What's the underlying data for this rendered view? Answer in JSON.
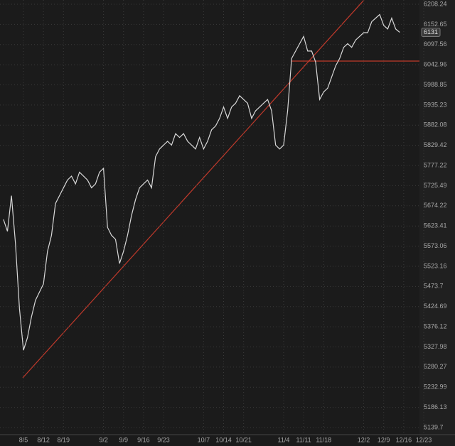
{
  "chart_data": {
    "type": "line",
    "log_scale": true,
    "grid": true,
    "categories": [
      null,
      null,
      null,
      null,
      null,
      "8/5",
      null,
      null,
      null,
      null,
      "8/12",
      null,
      null,
      null,
      null,
      "8/19",
      null,
      null,
      null,
      null,
      null,
      null,
      null,
      null,
      null,
      "9/2",
      null,
      null,
      null,
      null,
      "9/9",
      null,
      null,
      null,
      null,
      "9/16",
      null,
      null,
      null,
      null,
      "9/23",
      null,
      null,
      null,
      null,
      null,
      null,
      null,
      null,
      null,
      "10/7",
      null,
      null,
      null,
      null,
      "10/14",
      null,
      null,
      null,
      null,
      "10/21",
      null,
      null,
      null,
      null,
      null,
      null,
      null,
      null,
      null,
      "11/4",
      null,
      null,
      null,
      null,
      "11/11",
      null,
      null,
      null,
      null,
      "11/18",
      null,
      null,
      null,
      null,
      null,
      null,
      null,
      null,
      null,
      "12/2",
      null,
      null,
      null,
      null,
      "12/9",
      null,
      null,
      null,
      null,
      "12/16",
      null,
      null,
      null,
      null,
      "12/23"
    ],
    "series": [
      {
        "color": "#d8d8d8",
        "values": [
          5640,
          5610,
          5700,
          5580,
          5420,
          5320,
          5350,
          5400,
          5440,
          5460,
          5480,
          5560,
          5600,
          5680,
          5700,
          5720,
          5740,
          5750,
          5730,
          5760,
          5750,
          5740,
          5720,
          5730,
          5760,
          5770,
          5620,
          5600,
          5590,
          5530,
          5560,
          5600,
          5650,
          5690,
          5720,
          5730,
          5740,
          5720,
          5800,
          5820,
          5830,
          5840,
          5830,
          5860,
          5850,
          5860,
          5840,
          5830,
          5820,
          5850,
          5820,
          5840,
          5870,
          5880,
          5900,
          5930,
          5900,
          5930,
          5940,
          5960,
          5950,
          5940,
          5900,
          5920,
          5930,
          5940,
          5950,
          5920,
          5830,
          5820,
          5830,
          5920,
          6060,
          6080,
          6100,
          6120,
          6080,
          6080,
          6050,
          5950,
          5970,
          5980,
          6010,
          6040,
          6060,
          6090,
          6100,
          6090,
          6110,
          6120,
          6130,
          6130,
          6160,
          6170,
          6180,
          6150,
          6140,
          6170,
          6140,
          6131,
          null,
          null,
          null,
          null,
          null,
          null
        ]
      }
    ],
    "ylim": [
      5139.7,
      6208.24
    ],
    "yticks": [
      6208.24,
      6152.65,
      6097.56,
      6042.96,
      5988.85,
      5935.23,
      5882.08,
      5829.42,
      5777.22,
      5725.49,
      5674.22,
      5623.41,
      5573.06,
      5523.16,
      5473.7,
      5424.69,
      5376.12,
      5327.98,
      5280.27,
      5232.99,
      5186.13,
      5139.7
    ]
  }
}
